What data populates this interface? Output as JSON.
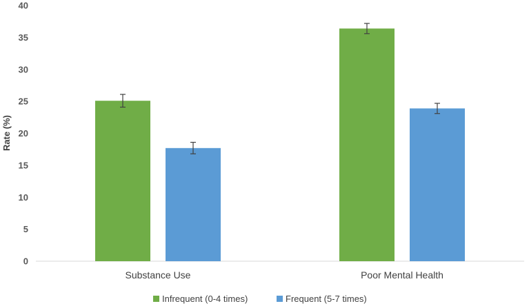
{
  "chart_data": {
    "type": "bar",
    "title": "",
    "xlabel": "",
    "ylabel": "Rate (%)",
    "ylim": [
      0,
      40
    ],
    "yticks": [
      0,
      5,
      10,
      15,
      20,
      25,
      30,
      35,
      40
    ],
    "categories": [
      "Substance Use",
      "Poor Mental Health"
    ],
    "series": [
      {
        "name": "Infrequent (0-4 times)",
        "color": "#70ad47",
        "values": [
          25.1,
          36.4
        ],
        "error": [
          1.0,
          0.8
        ]
      },
      {
        "name": "Frequent (5-7 times)",
        "color": "#5b9bd5",
        "values": [
          17.7,
          23.9
        ],
        "error": [
          0.9,
          0.8
        ]
      }
    ],
    "grid": false,
    "legend_position": "bottom",
    "error_bars": true
  }
}
